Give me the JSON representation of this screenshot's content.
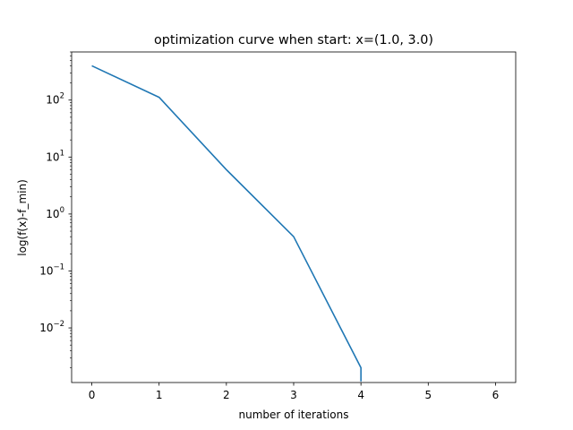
{
  "chart_data": {
    "type": "line",
    "title": "optimization curve when start: x=(1.0, 3.0)",
    "xlabel": "number of iterations",
    "ylabel": "log(f(x)-f_min)",
    "xlim": [
      -0.3,
      6.3
    ],
    "ylim": [
      0.0011,
      700
    ],
    "yscale": "log",
    "grid": false,
    "legend": "none",
    "x_ticks": [
      "0",
      "1",
      "2",
      "3",
      "4",
      "5",
      "6"
    ],
    "y_ticks": [
      {
        "value": 0.01,
        "base": "10",
        "exp": "−2"
      },
      {
        "value": 0.1,
        "base": "10",
        "exp": "−1"
      },
      {
        "value": 1,
        "base": "10",
        "exp": "0"
      },
      {
        "value": 10,
        "base": "10",
        "exp": "1"
      },
      {
        "value": 100,
        "base": "10",
        "exp": "2"
      }
    ],
    "series": [
      {
        "color": "#1f77b4",
        "points": [
          {
            "x": 0,
            "y": 400
          },
          {
            "x": 1,
            "y": 112
          },
          {
            "x": 2,
            "y": 6
          },
          {
            "x": 3,
            "y": 0.4
          },
          {
            "x": 4,
            "y": 0.002
          },
          {
            "x": 4,
            "y": 0.00115
          }
        ]
      }
    ]
  }
}
